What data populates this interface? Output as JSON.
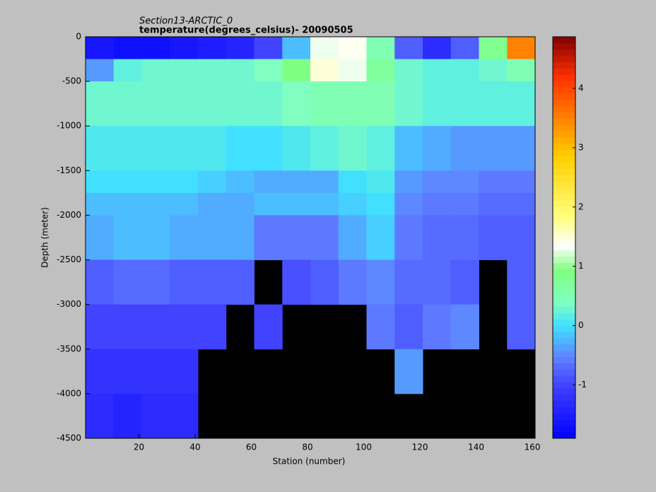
{
  "chart_data": {
    "type": "heatmap",
    "title": "Section13-ARCTIC_0",
    "subtitle": "temperature(degrees_celsius)- 20090505",
    "x_label": "Station (number)",
    "y_label": "Depth (meter)",
    "xbins": [
      1,
      11,
      21,
      31,
      41,
      51,
      61,
      71,
      81,
      91,
      101,
      111,
      121,
      131,
      141,
      151,
      161
    ],
    "ybins": [
      0,
      -250,
      -500,
      -1000,
      -1500,
      -1750,
      -2000,
      -2500,
      -3000,
      -3500,
      -4000,
      -4500
    ],
    "values": [
      [
        -1.6,
        -1.7,
        -1.7,
        -1.6,
        -1.5,
        -1.4,
        -1.0,
        -0.2,
        1.3,
        1.4,
        0.5,
        -0.8,
        -1.3,
        -0.8,
        0.8,
        3.5
      ],
      [
        -0.4,
        0.2,
        0.3,
        0.3,
        0.3,
        0.3,
        0.4,
        0.9,
        1.5,
        1.3,
        0.7,
        0.3,
        0.2,
        0.2,
        0.3,
        0.5
      ],
      [
        0.3,
        0.3,
        0.3,
        0.3,
        0.3,
        0.3,
        0.3,
        0.4,
        0.5,
        0.5,
        0.5,
        0.3,
        0.2,
        0.2,
        0.2,
        0.2
      ],
      [
        0.1,
        0.1,
        0.1,
        0.1,
        0.1,
        0.0,
        0.0,
        0.1,
        0.2,
        0.3,
        0.2,
        -0.2,
        -0.3,
        -0.4,
        -0.4,
        -0.4
      ],
      [
        0.0,
        0.0,
        0.0,
        0.0,
        -0.1,
        -0.2,
        -0.3,
        -0.3,
        -0.3,
        0.0,
        0.1,
        -0.4,
        -0.5,
        -0.5,
        -0.6,
        -0.6
      ],
      [
        -0.2,
        -0.2,
        -0.2,
        -0.2,
        -0.3,
        -0.3,
        -0.2,
        -0.2,
        -0.2,
        -0.1,
        0.0,
        -0.5,
        -0.6,
        -0.6,
        -0.7,
        -0.7
      ],
      [
        -0.3,
        -0.2,
        -0.2,
        -0.3,
        -0.3,
        -0.3,
        -0.6,
        -0.6,
        -0.6,
        -0.3,
        -0.1,
        -0.6,
        -0.7,
        -0.7,
        -0.8,
        -0.8
      ],
      [
        -0.8,
        -0.7,
        -0.7,
        -0.8,
        -0.8,
        -0.8,
        null,
        -0.9,
        -0.8,
        -0.6,
        -0.5,
        -0.7,
        -0.7,
        -0.8,
        null,
        -0.8
      ],
      [
        -1.0,
        -1.0,
        -1.0,
        -1.0,
        -1.0,
        null,
        -1.0,
        null,
        null,
        null,
        -0.6,
        -0.8,
        -0.6,
        -0.5,
        null,
        -0.8
      ],
      [
        -1.2,
        -1.2,
        -1.2,
        -1.2,
        null,
        null,
        null,
        null,
        null,
        null,
        null,
        -0.4,
        null,
        null,
        null,
        null
      ],
      [
        -1.3,
        -1.4,
        -1.3,
        -1.3,
        null,
        null,
        null,
        null,
        null,
        null,
        null,
        null,
        null,
        null,
        null,
        null
      ]
    ],
    "xlim": [
      1,
      161
    ],
    "xticks": [
      20,
      40,
      60,
      80,
      100,
      120,
      140,
      160
    ],
    "ylim": [
      -4500,
      0
    ],
    "yticks": [
      -4500,
      -4000,
      -3500,
      -3000,
      -2500,
      -2000,
      -1500,
      -1000,
      -500,
      0
    ],
    "clim": [
      -1.9,
      4.87
    ],
    "cticks": [
      -1,
      0,
      1,
      2,
      3,
      4
    ],
    "missing_color": "#000000"
  }
}
